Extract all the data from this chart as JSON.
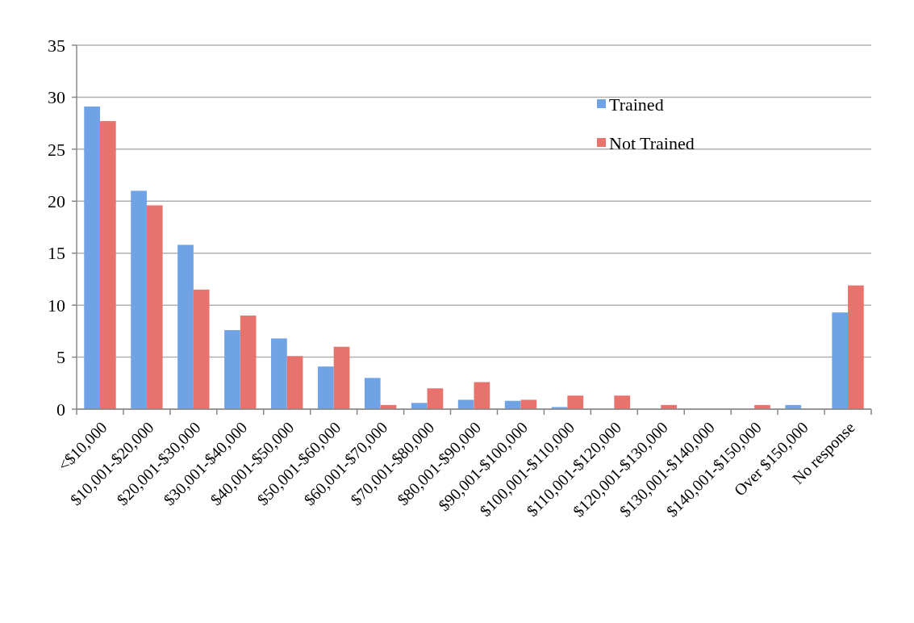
{
  "chart_data": {
    "type": "bar",
    "categories": [
      "<$10,000",
      "$10,001-$20,000",
      "$20,001-$30,000",
      "$30,001-$40,000",
      "$40,001-$50,000",
      "$50,001-$60,000",
      "$60,001-$70,000",
      "$70,001-$80,000",
      "$80,001-$90,000",
      "$90,001-$100,000",
      "$100,001-$110,000",
      "$110,001-$120,000",
      "$120,001-$130,000",
      "$130,001-$140,000",
      "$140,001-$150,000",
      "Over $150,000",
      "No response"
    ],
    "series": [
      {
        "name": "Trained",
        "color": "#6fa3e6",
        "values": [
          29.1,
          21.0,
          15.8,
          7.6,
          6.8,
          4.1,
          3.0,
          0.6,
          0.9,
          0.8,
          0.2,
          0,
          0,
          0,
          0,
          0.4,
          9.3
        ]
      },
      {
        "name": "Not Trained",
        "color": "#e8726c",
        "values": [
          27.7,
          19.6,
          11.5,
          9.0,
          5.1,
          6.0,
          0.4,
          2.0,
          2.6,
          0.9,
          1.3,
          1.3,
          0.4,
          0,
          0.4,
          0,
          11.9
        ]
      }
    ],
    "ylim": [
      0,
      35
    ],
    "yticks": [
      0,
      5,
      10,
      15,
      20,
      25,
      30,
      35
    ],
    "grid": "y",
    "legend": "top right"
  }
}
